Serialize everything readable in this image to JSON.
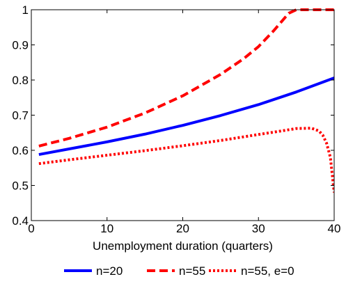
{
  "chart_data": {
    "type": "line",
    "xlabel": "Unemployment duration (quarters)",
    "ylabel": "",
    "xlim": [
      0,
      40
    ],
    "ylim": [
      0.4,
      1
    ],
    "xticks": [
      0,
      10,
      20,
      30,
      40
    ],
    "xtick_labels": [
      "0",
      "10",
      "20",
      "30",
      "40"
    ],
    "yticks": [
      0.4,
      0.5,
      0.6,
      0.7,
      0.8,
      0.9,
      1
    ],
    "ytick_labels": [
      "0.4",
      "0.5",
      "0.6",
      "0.7",
      "0.8",
      "0.9",
      "1"
    ],
    "grid": false,
    "legend_position": "bottom",
    "series": [
      {
        "name": "n=20",
        "color": "#0000ff",
        "style": "solid",
        "x": [
          1,
          5,
          10,
          15,
          20,
          25,
          30,
          35,
          40
        ],
        "y": [
          0.588,
          0.604,
          0.624,
          0.646,
          0.671,
          0.699,
          0.73,
          0.766,
          0.806
        ]
      },
      {
        "name": "n=55",
        "color": "#ff0000",
        "style": "dashed",
        "x": [
          1,
          5,
          10,
          15,
          20,
          25,
          28,
          30,
          32,
          34,
          35,
          40
        ],
        "y": [
          0.612,
          0.634,
          0.666,
          0.706,
          0.755,
          0.816,
          0.86,
          0.895,
          0.94,
          0.99,
          1.0,
          1.0
        ]
      },
      {
        "name": "n=55, e=0",
        "color": "#ff0000",
        "style": "dotted",
        "x": [
          1,
          5,
          10,
          15,
          20,
          25,
          30,
          33,
          35,
          37,
          38,
          38.5,
          39,
          39.5,
          40
        ],
        "y": [
          0.562,
          0.573,
          0.586,
          0.599,
          0.613,
          0.628,
          0.645,
          0.655,
          0.662,
          0.663,
          0.655,
          0.643,
          0.62,
          0.58,
          0.48
        ]
      }
    ]
  }
}
